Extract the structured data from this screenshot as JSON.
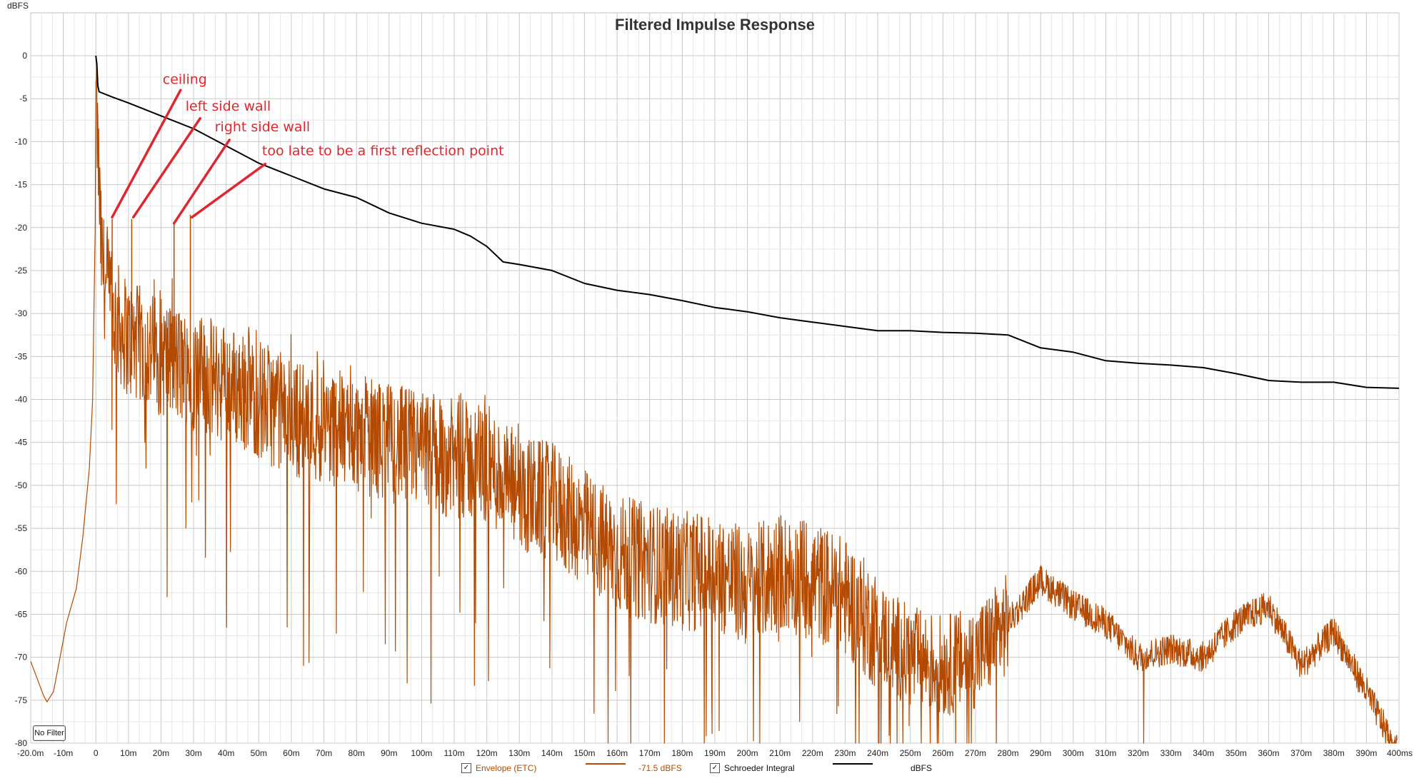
{
  "colors": {
    "envelope": "#b34a00",
    "schroeder": "#000000",
    "grid": "#d4d4d4",
    "annotation": "#e0262f"
  },
  "ui": {
    "no_filter_button": "No Filter"
  },
  "chart_data": {
    "type": "line",
    "title": "Filtered Impulse Response",
    "ylabel": "dBFS",
    "xlim": [
      -20,
      400
    ],
    "ylim": [
      -80,
      0
    ],
    "x_unit": "ms",
    "grid": true,
    "x_ticks": [
      {
        "v": -20,
        "label": "-20.0m"
      },
      {
        "v": -10,
        "label": "-10m"
      },
      {
        "v": 0,
        "label": "0"
      },
      {
        "v": 10,
        "label": "10m"
      },
      {
        "v": 20,
        "label": "20m"
      },
      {
        "v": 30,
        "label": "30m"
      },
      {
        "v": 40,
        "label": "40m"
      },
      {
        "v": 50,
        "label": "50m"
      },
      {
        "v": 60,
        "label": "60m"
      },
      {
        "v": 70,
        "label": "70m"
      },
      {
        "v": 80,
        "label": "80m"
      },
      {
        "v": 90,
        "label": "90m"
      },
      {
        "v": 100,
        "label": "100m"
      },
      {
        "v": 110,
        "label": "110m"
      },
      {
        "v": 120,
        "label": "120m"
      },
      {
        "v": 130,
        "label": "130m"
      },
      {
        "v": 140,
        "label": "140m"
      },
      {
        "v": 150,
        "label": "150m"
      },
      {
        "v": 160,
        "label": "160m"
      },
      {
        "v": 170,
        "label": "170m"
      },
      {
        "v": 180,
        "label": "180m"
      },
      {
        "v": 190,
        "label": "190m"
      },
      {
        "v": 200,
        "label": "200m"
      },
      {
        "v": 210,
        "label": "210m"
      },
      {
        "v": 220,
        "label": "220m"
      },
      {
        "v": 230,
        "label": "230m"
      },
      {
        "v": 240,
        "label": "240m"
      },
      {
        "v": 250,
        "label": "250m"
      },
      {
        "v": 260,
        "label": "260m"
      },
      {
        "v": 270,
        "label": "270m"
      },
      {
        "v": 280,
        "label": "280m"
      },
      {
        "v": 290,
        "label": "290m"
      },
      {
        "v": 300,
        "label": "300m"
      },
      {
        "v": 310,
        "label": "310m"
      },
      {
        "v": 320,
        "label": "320m"
      },
      {
        "v": 330,
        "label": "330m"
      },
      {
        "v": 340,
        "label": "340m"
      },
      {
        "v": 350,
        "label": "350m"
      },
      {
        "v": 360,
        "label": "360m"
      },
      {
        "v": 370,
        "label": "370m"
      },
      {
        "v": 380,
        "label": "380m"
      },
      {
        "v": 390,
        "label": "390m"
      },
      {
        "v": 400,
        "label": "400ms"
      }
    ],
    "y_ticks": [
      {
        "v": 0,
        "label": "0"
      },
      {
        "v": -5,
        "label": "-5"
      },
      {
        "v": -10,
        "label": "-10"
      },
      {
        "v": -15,
        "label": "-15"
      },
      {
        "v": -20,
        "label": "-20"
      },
      {
        "v": -25,
        "label": "-25"
      },
      {
        "v": -30,
        "label": "-30"
      },
      {
        "v": -35,
        "label": "-35"
      },
      {
        "v": -40,
        "label": "-40"
      },
      {
        "v": -45,
        "label": "-45"
      },
      {
        "v": -50,
        "label": "-50"
      },
      {
        "v": -55,
        "label": "-55"
      },
      {
        "v": -60,
        "label": "-60"
      },
      {
        "v": -65,
        "label": "-65"
      },
      {
        "v": -70,
        "label": "-70"
      },
      {
        "v": -75,
        "label": "-75"
      },
      {
        "v": -80,
        "label": "-80"
      }
    ],
    "series": [
      {
        "name": "Envelope (ETC)",
        "value_label": "-71.5 dBFS",
        "checked": true,
        "color": "#b34a00",
        "style": "noisy-envelope",
        "points": [
          [
            -20,
            -70.5
          ],
          [
            -18,
            -72.5
          ],
          [
            -16,
            -74.5
          ],
          [
            -15,
            -75.2
          ],
          [
            -13,
            -74
          ],
          [
            -11,
            -70
          ],
          [
            -9,
            -66
          ],
          [
            -6,
            -62
          ],
          [
            -4,
            -56
          ],
          [
            -2,
            -48
          ],
          [
            -1,
            -40
          ],
          [
            -0.2,
            -20
          ],
          [
            0,
            -3
          ],
          [
            0.5,
            -10
          ],
          [
            1,
            -15
          ],
          [
            1.5,
            -22
          ],
          [
            2,
            -24
          ],
          [
            3,
            -27
          ],
          [
            5,
            -30
          ],
          [
            10,
            -33
          ],
          [
            20,
            -35
          ],
          [
            30,
            -37
          ],
          [
            40,
            -38
          ],
          [
            50,
            -40
          ],
          [
            60,
            -42
          ],
          [
            70,
            -43
          ],
          [
            80,
            -44
          ],
          [
            90,
            -45
          ],
          [
            100,
            -46
          ],
          [
            110,
            -47
          ],
          [
            120,
            -47.5
          ],
          [
            130,
            -51
          ],
          [
            140,
            -52
          ],
          [
            150,
            -55
          ],
          [
            160,
            -58
          ],
          [
            170,
            -59
          ],
          [
            180,
            -60
          ],
          [
            190,
            -60
          ],
          [
            200,
            -62
          ],
          [
            210,
            -60
          ],
          [
            220,
            -61
          ],
          [
            230,
            -63
          ],
          [
            240,
            -67
          ],
          [
            250,
            -70
          ],
          [
            260,
            -71
          ],
          [
            270,
            -70
          ],
          [
            280,
            -66
          ],
          [
            290,
            -61
          ],
          [
            300,
            -64
          ],
          [
            310,
            -66
          ],
          [
            320,
            -70
          ],
          [
            330,
            -69
          ],
          [
            340,
            -70
          ],
          [
            350,
            -66
          ],
          [
            360,
            -64
          ],
          [
            370,
            -71
          ],
          [
            380,
            -67
          ],
          [
            390,
            -74
          ],
          [
            398,
            -80
          ]
        ],
        "spikes": [
          [
            5,
            -19
          ],
          [
            11,
            -19
          ],
          [
            24,
            -19.5
          ],
          [
            29,
            -18.5
          ]
        ]
      },
      {
        "name": "Schroeder Integral",
        "value_label": "dBFS",
        "checked": true,
        "color": "#000000",
        "style": "line",
        "points": [
          [
            0,
            0
          ],
          [
            0.3,
            -1
          ],
          [
            0.6,
            -3.5
          ],
          [
            1,
            -4.2
          ],
          [
            5,
            -4.8
          ],
          [
            10,
            -5.5
          ],
          [
            20,
            -7
          ],
          [
            30,
            -8.5
          ],
          [
            40,
            -10.5
          ],
          [
            50,
            -12.5
          ],
          [
            60,
            -14
          ],
          [
            70,
            -15.5
          ],
          [
            80,
            -16.5
          ],
          [
            90,
            -18.3
          ],
          [
            100,
            -19.5
          ],
          [
            110,
            -20.2
          ],
          [
            115,
            -21
          ],
          [
            120,
            -22.2
          ],
          [
            125,
            -24
          ],
          [
            130,
            -24.3
          ],
          [
            140,
            -25
          ],
          [
            150,
            -26.5
          ],
          [
            160,
            -27.3
          ],
          [
            170,
            -27.8
          ],
          [
            180,
            -28.5
          ],
          [
            190,
            -29.3
          ],
          [
            200,
            -29.8
          ],
          [
            210,
            -30.5
          ],
          [
            220,
            -31
          ],
          [
            230,
            -31.5
          ],
          [
            240,
            -32
          ],
          [
            250,
            -32
          ],
          [
            260,
            -32.2
          ],
          [
            270,
            -32.3
          ],
          [
            280,
            -32.5
          ],
          [
            290,
            -34
          ],
          [
            300,
            -34.5
          ],
          [
            310,
            -35.5
          ],
          [
            320,
            -35.8
          ],
          [
            330,
            -36
          ],
          [
            340,
            -36.3
          ],
          [
            350,
            -37
          ],
          [
            360,
            -37.8
          ],
          [
            370,
            -38
          ],
          [
            380,
            -38
          ],
          [
            390,
            -38.6
          ],
          [
            400,
            -38.7
          ]
        ]
      }
    ],
    "annotations": [
      {
        "text": "ceiling",
        "label_at": [
          20.5,
          -3.3
        ],
        "line_from": [
          26,
          -4
        ],
        "line_to": [
          5,
          -18.8
        ]
      },
      {
        "text": "left side wall",
        "label_at": [
          27.5,
          -6.4
        ],
        "line_from": [
          32,
          -7.3
        ],
        "line_to": [
          11.5,
          -18.8
        ]
      },
      {
        "text": "right side wall",
        "label_at": [
          36.5,
          -8.8
        ],
        "line_from": [
          41,
          -9.8
        ],
        "line_to": [
          24,
          -19.5
        ]
      },
      {
        "text": "too late to be a first reflection point",
        "label_at": [
          51,
          -11.6
        ],
        "line_from": [
          52,
          -12.6
        ],
        "line_to": [
          29.5,
          -18.8
        ]
      }
    ]
  }
}
